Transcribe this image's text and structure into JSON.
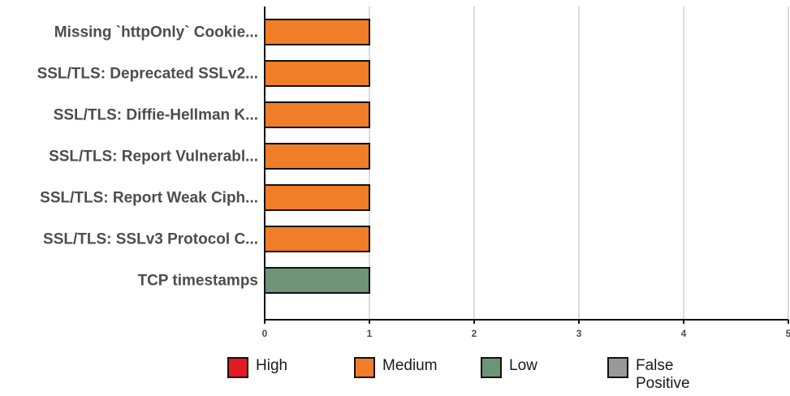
{
  "chart_data": {
    "type": "bar",
    "orientation": "horizontal",
    "categories": [
      "Missing `httpOnly` Cookie...",
      "SSL/TLS: Deprecated SSLv2...",
      "SSL/TLS: Diffie-Hellman K...",
      "SSL/TLS: Report Vulnerabl...",
      "SSL/TLS: Report Weak Ciph...",
      "SSL/TLS: SSLv3 Protocol C...",
      "TCP timestamps"
    ],
    "values": [
      1,
      1,
      1,
      1,
      1,
      1,
      1
    ],
    "severity": [
      "Medium",
      "Medium",
      "Medium",
      "Medium",
      "Medium",
      "Medium",
      "Low"
    ],
    "xlim": [
      0,
      5
    ],
    "xticks": [
      "0",
      "1",
      "2",
      "3",
      "4",
      "5"
    ],
    "grid": "vertical",
    "legend_position": "bottom"
  },
  "legend": [
    {
      "label": "High",
      "color": "#e31a22"
    },
    {
      "label": "Medium",
      "color": "#f07d27"
    },
    {
      "label": "Low",
      "color": "#6e9478"
    },
    {
      "label": "False Positive",
      "color": "#999999"
    }
  ]
}
